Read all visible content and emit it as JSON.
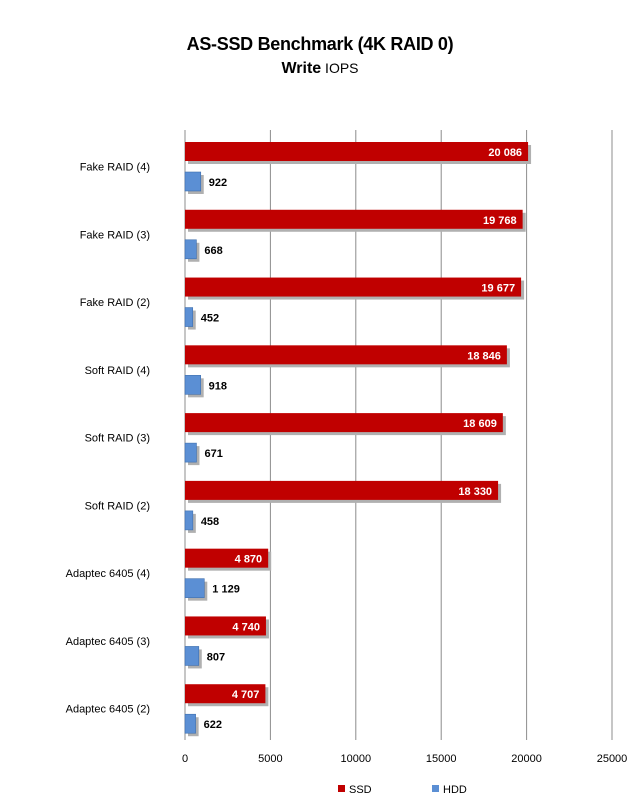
{
  "chart_data": {
    "type": "bar",
    "orientation": "horizontal",
    "title": "AS-SSD Benchmark (4K RAID 0)",
    "subtitle_bold": "Write",
    "subtitle_rest": " IOPS",
    "categories": [
      "Fake RAID (4)",
      "Fake RAID (3)",
      "Fake RAID (2)",
      "Soft RAID (4)",
      "Soft RAID (3)",
      "Soft RAID (2)",
      "Adaptec 6405 (4)",
      "Adaptec 6405 (3)",
      "Adaptec 6405 (2)"
    ],
    "series": [
      {
        "name": "SSD",
        "color": "#c00000",
        "values": [
          20086,
          19768,
          19677,
          18846,
          18609,
          18330,
          4870,
          4740,
          4707
        ],
        "labels": [
          "20 086",
          "19 768",
          "19 677",
          "18 846",
          "18 609",
          "18 330",
          "4 870",
          "4 740",
          "4 707"
        ]
      },
      {
        "name": "HDD",
        "color": "#5b8fd4",
        "values": [
          922,
          668,
          452,
          918,
          671,
          458,
          1129,
          807,
          622
        ],
        "labels": [
          "922",
          "668",
          "452",
          "918",
          "671",
          "458",
          "1 129",
          "807",
          "622"
        ]
      }
    ],
    "xlim": [
      0,
      25000
    ],
    "x_ticks": [
      0,
      5000,
      10000,
      15000,
      20000,
      25000
    ],
    "x_tick_labels": [
      "0",
      "5000",
      "10000",
      "15000",
      "20000",
      "25000"
    ],
    "grid": "vertical",
    "legend_position": "bottom"
  }
}
